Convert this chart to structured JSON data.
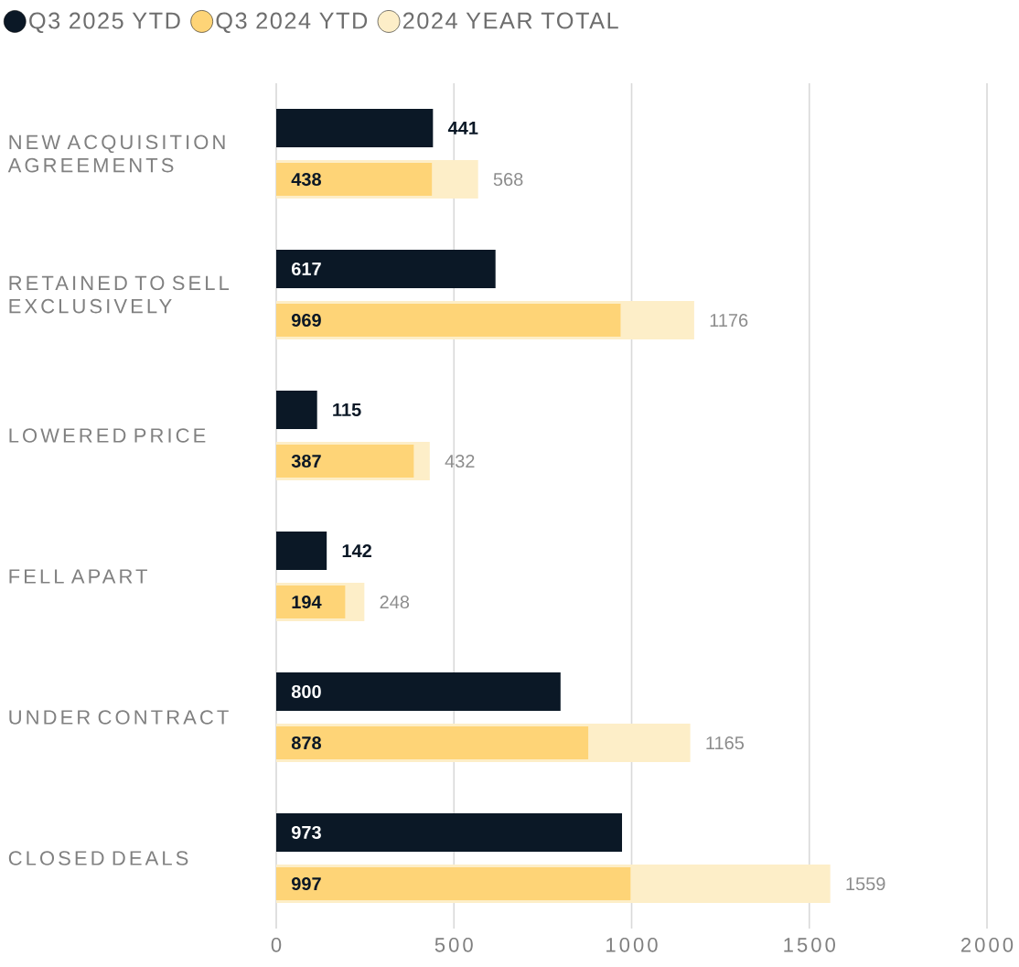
{
  "chart_data": {
    "type": "bar",
    "orientation": "horizontal",
    "categories": [
      "NEW ACQUISITION AGREEMENTS",
      "RETAINED TO SELL EXCLUSIVELY",
      "LOWERED PRICE",
      "FELL APART",
      "UNDER CONTRACT",
      "CLOSED DEALS"
    ],
    "series": [
      {
        "name": "Q3 2025 YTD",
        "color": "#0b1826",
        "values": [
          441,
          617,
          115,
          142,
          800,
          973
        ],
        "value_labels": [
          "441",
          "617",
          "115",
          "142",
          "800",
          "973"
        ]
      },
      {
        "name": "Q3 2024 YTD",
        "color": "#fed477",
        "values": [
          438,
          969,
          387,
          194,
          878,
          997
        ],
        "value_labels": [
          "438",
          "969",
          "387",
          "194",
          "878",
          "997"
        ]
      },
      {
        "name": "2024 YEAR TOTAL",
        "color": "#fdeec8",
        "values": [
          568,
          1176,
          432,
          248,
          1165,
          1559
        ],
        "value_labels": [
          "568",
          "1176",
          "432",
          "248",
          "1165",
          "1559"
        ]
      }
    ],
    "xlim": [
      0,
      2000
    ],
    "xticks": [
      0,
      500,
      1000,
      1500,
      2000
    ],
    "grid": "x",
    "legend": "top left"
  }
}
